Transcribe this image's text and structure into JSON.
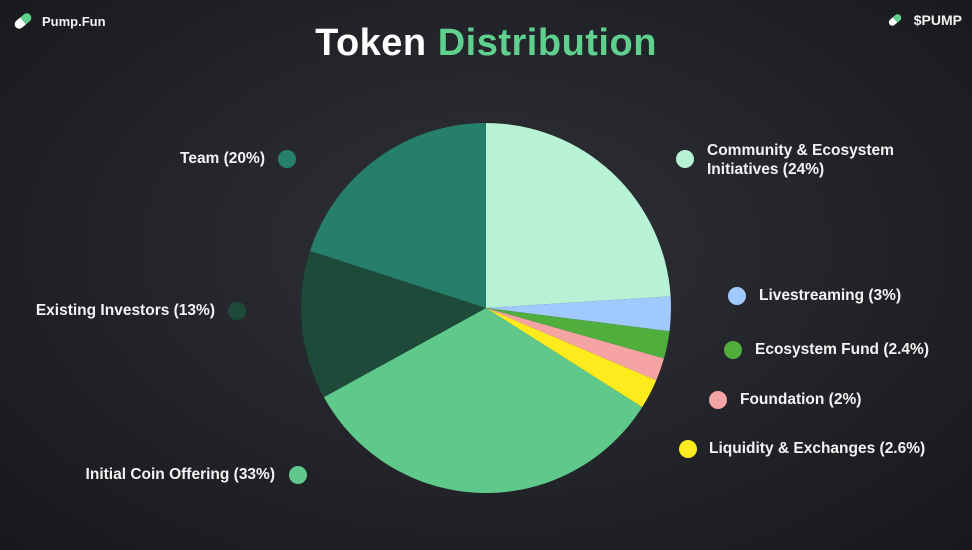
{
  "header": {
    "brand_label": "Pump.Fun",
    "ticker_label": "$PUMP",
    "brand_icon": "pill-icon"
  },
  "title": {
    "main": "Token",
    "accent": "Distribution",
    "accent_color": "#5fd08e"
  },
  "chart_data": {
    "type": "pie",
    "title": "Token Distribution",
    "start_angle_deg": 0,
    "direction": "clockwise",
    "slices": [
      {
        "name": "Community & Ecosystem Initiatives",
        "value": 24,
        "label": "Community & Ecosystem Initiatives (24%)",
        "color": "#b8f2d4"
      },
      {
        "name": "Livestreaming",
        "value": 3,
        "label": "Livestreaming (3%)",
        "color": "#9fc9ff"
      },
      {
        "name": "Ecosystem Fund",
        "value": 2.4,
        "label": "Ecosystem Fund (2.4%)",
        "color": "#4fae3c"
      },
      {
        "name": "Foundation",
        "value": 2,
        "label": "Foundation (2%)",
        "color": "#f5a3a3"
      },
      {
        "name": "Liquidity & Exchanges",
        "value": 2.6,
        "label": "Liquidity & Exchanges (2.6%)",
        "color": "#fdeb1e"
      },
      {
        "name": "Initial Coin Offering",
        "value": 33,
        "label": "Initial Coin Offering (33%)",
        "color": "#5ec98a"
      },
      {
        "name": "Existing Investors",
        "value": 13,
        "label": "Existing Investors (13%)",
        "color": "#1e4a3a"
      },
      {
        "name": "Team",
        "value": 20,
        "label": "Team (20%)",
        "color": "#257f6a"
      }
    ]
  }
}
